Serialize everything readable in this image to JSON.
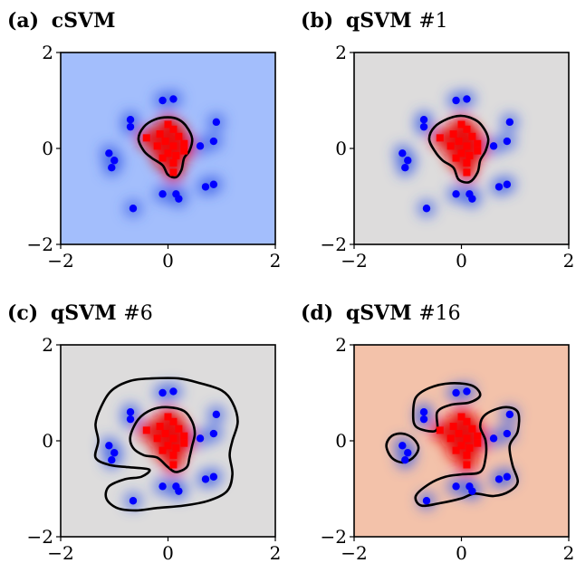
{
  "chart_data": [
    {
      "type": "scatter",
      "panel": "a",
      "title_label": "(a)",
      "title_name": "cSVM",
      "title_suffix": "",
      "background": "#a3befc",
      "xlim": [
        -2,
        2
      ],
      "ylim": [
        -2,
        2
      ],
      "xticks": [
        {
          "v": -2,
          "t": "−2"
        },
        {
          "v": 0,
          "t": "0"
        },
        {
          "v": 2,
          "t": "2"
        }
      ],
      "yticks": [
        {
          "v": 2,
          "t": "2"
        },
        {
          "v": 0,
          "t": "0"
        },
        {
          "v": -2,
          "t": "−2"
        }
      ],
      "series": [
        {
          "color": "#0000ff",
          "marker": "circle",
          "points": [
            [
              -0.7,
              0.45
            ],
            [
              -0.1,
              1.0
            ],
            [
              0.1,
              1.03
            ],
            [
              -0.7,
              0.6
            ],
            [
              0.9,
              0.55
            ],
            [
              0.85,
              0.15
            ],
            [
              0.6,
              0.05
            ],
            [
              -1.1,
              -0.1
            ],
            [
              -1.0,
              -0.25
            ],
            [
              -1.05,
              -0.4
            ],
            [
              0.7,
              -0.8
            ],
            [
              0.85,
              -0.75
            ],
            [
              -0.1,
              -0.95
            ],
            [
              0.15,
              -0.95
            ],
            [
              0.2,
              -1.05
            ],
            [
              -0.65,
              -1.25
            ]
          ]
        },
        {
          "color": "#ff0000",
          "marker": "square",
          "points": [
            [
              -0.4,
              0.22
            ],
            [
              -0.15,
              0.3
            ],
            [
              0.0,
              0.5
            ],
            [
              0.1,
              0.4
            ],
            [
              0.2,
              0.25
            ],
            [
              -0.05,
              0.15
            ],
            [
              0.1,
              0.05
            ],
            [
              -0.2,
              0.05
            ],
            [
              0.3,
              0.1
            ],
            [
              0.0,
              -0.1
            ],
            [
              0.15,
              -0.15
            ],
            [
              -0.1,
              -0.2
            ],
            [
              0.3,
              -0.05
            ],
            [
              0.1,
              -0.3
            ],
            [
              0.1,
              -0.5
            ]
          ]
        }
      ],
      "contours": [
        [
          [
            -0.55,
            0.2
          ],
          [
            -0.45,
            0.45
          ],
          [
            -0.25,
            0.6
          ],
          [
            0.0,
            0.65
          ],
          [
            0.2,
            0.6
          ],
          [
            0.35,
            0.45
          ],
          [
            0.45,
            0.2
          ],
          [
            0.4,
            -0.05
          ],
          [
            0.3,
            -0.2
          ],
          [
            0.25,
            -0.45
          ],
          [
            0.15,
            -0.6
          ],
          [
            0.0,
            -0.55
          ],
          [
            -0.1,
            -0.35
          ],
          [
            -0.3,
            -0.2
          ],
          [
            -0.45,
            -0.05
          ]
        ]
      ]
    },
    {
      "type": "scatter",
      "panel": "b",
      "title_label": "(b)",
      "title_name": "qSVM",
      "title_suffix": "#1",
      "background": "#dddcdc",
      "xlim": [
        -2,
        2
      ],
      "ylim": [
        -2,
        2
      ],
      "xticks": [
        {
          "v": -2,
          "t": "−2"
        },
        {
          "v": 0,
          "t": "0"
        },
        {
          "v": 2,
          "t": "2"
        }
      ],
      "yticks": [
        {
          "v": 2,
          "t": "2"
        },
        {
          "v": 0,
          "t": "0"
        },
        {
          "v": -2,
          "t": "−2"
        }
      ],
      "series": [
        {
          "color": "#0000ff",
          "marker": "circle",
          "points": [
            [
              -0.7,
              0.45
            ],
            [
              -0.1,
              1.0
            ],
            [
              0.1,
              1.03
            ],
            [
              -0.7,
              0.6
            ],
            [
              0.9,
              0.55
            ],
            [
              0.85,
              0.15
            ],
            [
              0.6,
              0.05
            ],
            [
              -1.1,
              -0.1
            ],
            [
              -1.0,
              -0.25
            ],
            [
              -1.05,
              -0.4
            ],
            [
              0.7,
              -0.8
            ],
            [
              0.85,
              -0.75
            ],
            [
              -0.1,
              -0.95
            ],
            [
              0.15,
              -0.95
            ],
            [
              0.2,
              -1.05
            ],
            [
              -0.65,
              -1.25
            ]
          ]
        },
        {
          "color": "#ff0000",
          "marker": "square",
          "points": [
            [
              -0.4,
              0.22
            ],
            [
              -0.15,
              0.3
            ],
            [
              0.0,
              0.5
            ],
            [
              0.1,
              0.4
            ],
            [
              0.2,
              0.25
            ],
            [
              -0.05,
              0.15
            ],
            [
              0.1,
              0.05
            ],
            [
              -0.2,
              0.05
            ],
            [
              0.3,
              0.1
            ],
            [
              0.0,
              -0.1
            ],
            [
              0.15,
              -0.15
            ],
            [
              -0.1,
              -0.2
            ],
            [
              0.3,
              -0.05
            ],
            [
              0.1,
              -0.3
            ],
            [
              0.1,
              -0.5
            ]
          ]
        }
      ],
      "contours": [
        [
          [
            -0.6,
            0.2
          ],
          [
            -0.5,
            0.45
          ],
          [
            -0.25,
            0.62
          ],
          [
            0.0,
            0.68
          ],
          [
            0.25,
            0.6
          ],
          [
            0.4,
            0.45
          ],
          [
            0.5,
            0.2
          ],
          [
            0.45,
            -0.05
          ],
          [
            0.35,
            -0.25
          ],
          [
            0.3,
            -0.5
          ],
          [
            0.15,
            -0.7
          ],
          [
            -0.05,
            -0.65
          ],
          [
            -0.15,
            -0.4
          ],
          [
            -0.35,
            -0.25
          ],
          [
            -0.5,
            -0.05
          ]
        ]
      ]
    },
    {
      "type": "scatter",
      "panel": "c",
      "title_label": "(c)",
      "title_name": "qSVM",
      "title_suffix": "#6",
      "background": "#dddcdc",
      "xlim": [
        -2,
        2
      ],
      "ylim": [
        -2,
        2
      ],
      "xticks": [
        {
          "v": -2,
          "t": "−2"
        },
        {
          "v": 0,
          "t": "0"
        },
        {
          "v": 2,
          "t": "2"
        }
      ],
      "yticks": [
        {
          "v": 2,
          "t": "2"
        },
        {
          "v": 0,
          "t": "0"
        },
        {
          "v": -2,
          "t": "−2"
        }
      ],
      "series": [
        {
          "color": "#0000ff",
          "marker": "circle",
          "points": [
            [
              -0.7,
              0.45
            ],
            [
              -0.1,
              1.0
            ],
            [
              0.1,
              1.03
            ],
            [
              -0.7,
              0.6
            ],
            [
              0.9,
              0.55
            ],
            [
              0.85,
              0.15
            ],
            [
              0.6,
              0.05
            ],
            [
              -1.1,
              -0.1
            ],
            [
              -1.0,
              -0.25
            ],
            [
              -1.05,
              -0.4
            ],
            [
              0.7,
              -0.8
            ],
            [
              0.85,
              -0.75
            ],
            [
              -0.1,
              -0.95
            ],
            [
              0.15,
              -0.95
            ],
            [
              0.2,
              -1.05
            ],
            [
              -0.65,
              -1.25
            ]
          ]
        },
        {
          "color": "#ff0000",
          "marker": "square",
          "points": [
            [
              -0.4,
              0.22
            ],
            [
              -0.15,
              0.3
            ],
            [
              0.0,
              0.5
            ],
            [
              0.1,
              0.4
            ],
            [
              0.2,
              0.25
            ],
            [
              -0.05,
              0.15
            ],
            [
              0.1,
              0.05
            ],
            [
              -0.2,
              0.05
            ],
            [
              0.3,
              0.1
            ],
            [
              0.0,
              -0.1
            ],
            [
              0.15,
              -0.15
            ],
            [
              -0.1,
              -0.2
            ],
            [
              0.3,
              -0.05
            ],
            [
              0.1,
              -0.3
            ],
            [
              0.1,
              -0.5
            ]
          ]
        }
      ],
      "contours": [
        [
          [
            -0.7,
            0.1
          ],
          [
            -0.55,
            0.45
          ],
          [
            -0.3,
            0.65
          ],
          [
            0.0,
            0.7
          ],
          [
            0.3,
            0.62
          ],
          [
            0.45,
            0.4
          ],
          [
            0.5,
            0.15
          ],
          [
            0.45,
            -0.1
          ],
          [
            0.4,
            -0.35
          ],
          [
            0.35,
            -0.55
          ],
          [
            0.15,
            -0.65
          ],
          [
            0.0,
            -0.55
          ],
          [
            -0.2,
            -0.35
          ],
          [
            -0.45,
            -0.3
          ],
          [
            -0.65,
            -0.15
          ]
        ],
        [
          [
            -1.3,
            0.0
          ],
          [
            -1.35,
            0.35
          ],
          [
            -1.25,
            0.7
          ],
          [
            -1.05,
            1.05
          ],
          [
            -0.7,
            1.25
          ],
          [
            -0.3,
            1.3
          ],
          [
            0.2,
            1.3
          ],
          [
            0.6,
            1.2
          ],
          [
            1.0,
            1.05
          ],
          [
            1.2,
            0.8
          ],
          [
            1.3,
            0.4
          ],
          [
            1.2,
            0.0
          ],
          [
            1.15,
            -0.3
          ],
          [
            1.2,
            -0.7
          ],
          [
            1.1,
            -1.05
          ],
          [
            0.75,
            -1.25
          ],
          [
            0.3,
            -1.35
          ],
          [
            -0.2,
            -1.4
          ],
          [
            -0.6,
            -1.45
          ],
          [
            -0.95,
            -1.4
          ],
          [
            -1.15,
            -1.2
          ],
          [
            -1.1,
            -0.95
          ],
          [
            -0.8,
            -0.8
          ],
          [
            -0.5,
            -0.75
          ],
          [
            -0.35,
            -0.6
          ],
          [
            -0.75,
            -0.55
          ],
          [
            -1.1,
            -0.5
          ],
          [
            -1.35,
            -0.35
          ]
        ]
      ]
    },
    {
      "type": "scatter",
      "panel": "d",
      "title_label": "(d)",
      "title_name": "qSVM",
      "title_suffix": "#16",
      "background": "#f3c2aa",
      "xlim": [
        -2,
        2
      ],
      "ylim": [
        -2,
        2
      ],
      "xticks": [
        {
          "v": -2,
          "t": "−2"
        },
        {
          "v": 0,
          "t": "0"
        },
        {
          "v": 2,
          "t": "2"
        }
      ],
      "yticks": [
        {
          "v": 2,
          "t": "2"
        },
        {
          "v": 0,
          "t": "0"
        },
        {
          "v": -2,
          "t": "−2"
        }
      ],
      "series": [
        {
          "color": "#0000ff",
          "marker": "circle",
          "points": [
            [
              -0.7,
              0.45
            ],
            [
              -0.1,
              1.0
            ],
            [
              0.1,
              1.03
            ],
            [
              -0.7,
              0.6
            ],
            [
              0.9,
              0.55
            ],
            [
              0.85,
              0.15
            ],
            [
              0.6,
              0.05
            ],
            [
              -1.1,
              -0.1
            ],
            [
              -1.0,
              -0.25
            ],
            [
              -1.05,
              -0.4
            ],
            [
              0.7,
              -0.8
            ],
            [
              0.85,
              -0.75
            ],
            [
              -0.1,
              -0.95
            ],
            [
              0.15,
              -0.95
            ],
            [
              0.2,
              -1.05
            ],
            [
              -0.65,
              -1.25
            ]
          ]
        },
        {
          "color": "#ff0000",
          "marker": "square",
          "points": [
            [
              -0.4,
              0.22
            ],
            [
              -0.15,
              0.3
            ],
            [
              0.0,
              0.5
            ],
            [
              0.1,
              0.4
            ],
            [
              0.2,
              0.25
            ],
            [
              -0.05,
              0.15
            ],
            [
              0.1,
              0.05
            ],
            [
              -0.2,
              0.05
            ],
            [
              0.3,
              0.1
            ],
            [
              0.0,
              -0.1
            ],
            [
              0.15,
              -0.15
            ],
            [
              -0.1,
              -0.2
            ],
            [
              0.3,
              -0.05
            ],
            [
              0.1,
              -0.3
            ],
            [
              0.1,
              -0.5
            ]
          ]
        }
      ],
      "contours": [
        [
          [
            -0.9,
            0.55
          ],
          [
            -0.85,
            0.9
          ],
          [
            -0.6,
            1.1
          ],
          [
            -0.2,
            1.2
          ],
          [
            0.2,
            1.15
          ],
          [
            0.35,
            0.95
          ],
          [
            0.15,
            0.8
          ],
          [
            -0.2,
            0.75
          ],
          [
            -0.45,
            0.6
          ],
          [
            -0.45,
            0.25
          ],
          [
            -0.6,
            0.2
          ],
          [
            -0.85,
            0.3
          ]
        ],
        [
          [
            -1.4,
            -0.1
          ],
          [
            -1.3,
            0.1
          ],
          [
            -1.1,
            0.15
          ],
          [
            -0.9,
            0.05
          ],
          [
            -0.8,
            -0.15
          ],
          [
            -0.9,
            -0.35
          ],
          [
            -1.1,
            -0.45
          ],
          [
            -1.3,
            -0.35
          ]
        ],
        [
          [
            0.45,
            0.55
          ],
          [
            0.8,
            0.7
          ],
          [
            1.05,
            0.6
          ],
          [
            1.05,
            0.2
          ],
          [
            0.9,
            -0.1
          ],
          [
            0.95,
            -0.5
          ],
          [
            1.05,
            -0.85
          ],
          [
            0.9,
            -1.05
          ],
          [
            0.6,
            -1.15
          ],
          [
            0.25,
            -1.1
          ],
          [
            0.0,
            -1.2
          ],
          [
            -0.4,
            -1.3
          ],
          [
            -0.75,
            -1.35
          ],
          [
            -0.85,
            -1.15
          ],
          [
            -0.6,
            -0.9
          ],
          [
            -0.3,
            -0.75
          ],
          [
            0.0,
            -0.7
          ],
          [
            0.35,
            -0.65
          ],
          [
            0.45,
            -0.35
          ],
          [
            0.45,
            0.0
          ],
          [
            0.35,
            0.3
          ]
        ]
      ]
    }
  ]
}
